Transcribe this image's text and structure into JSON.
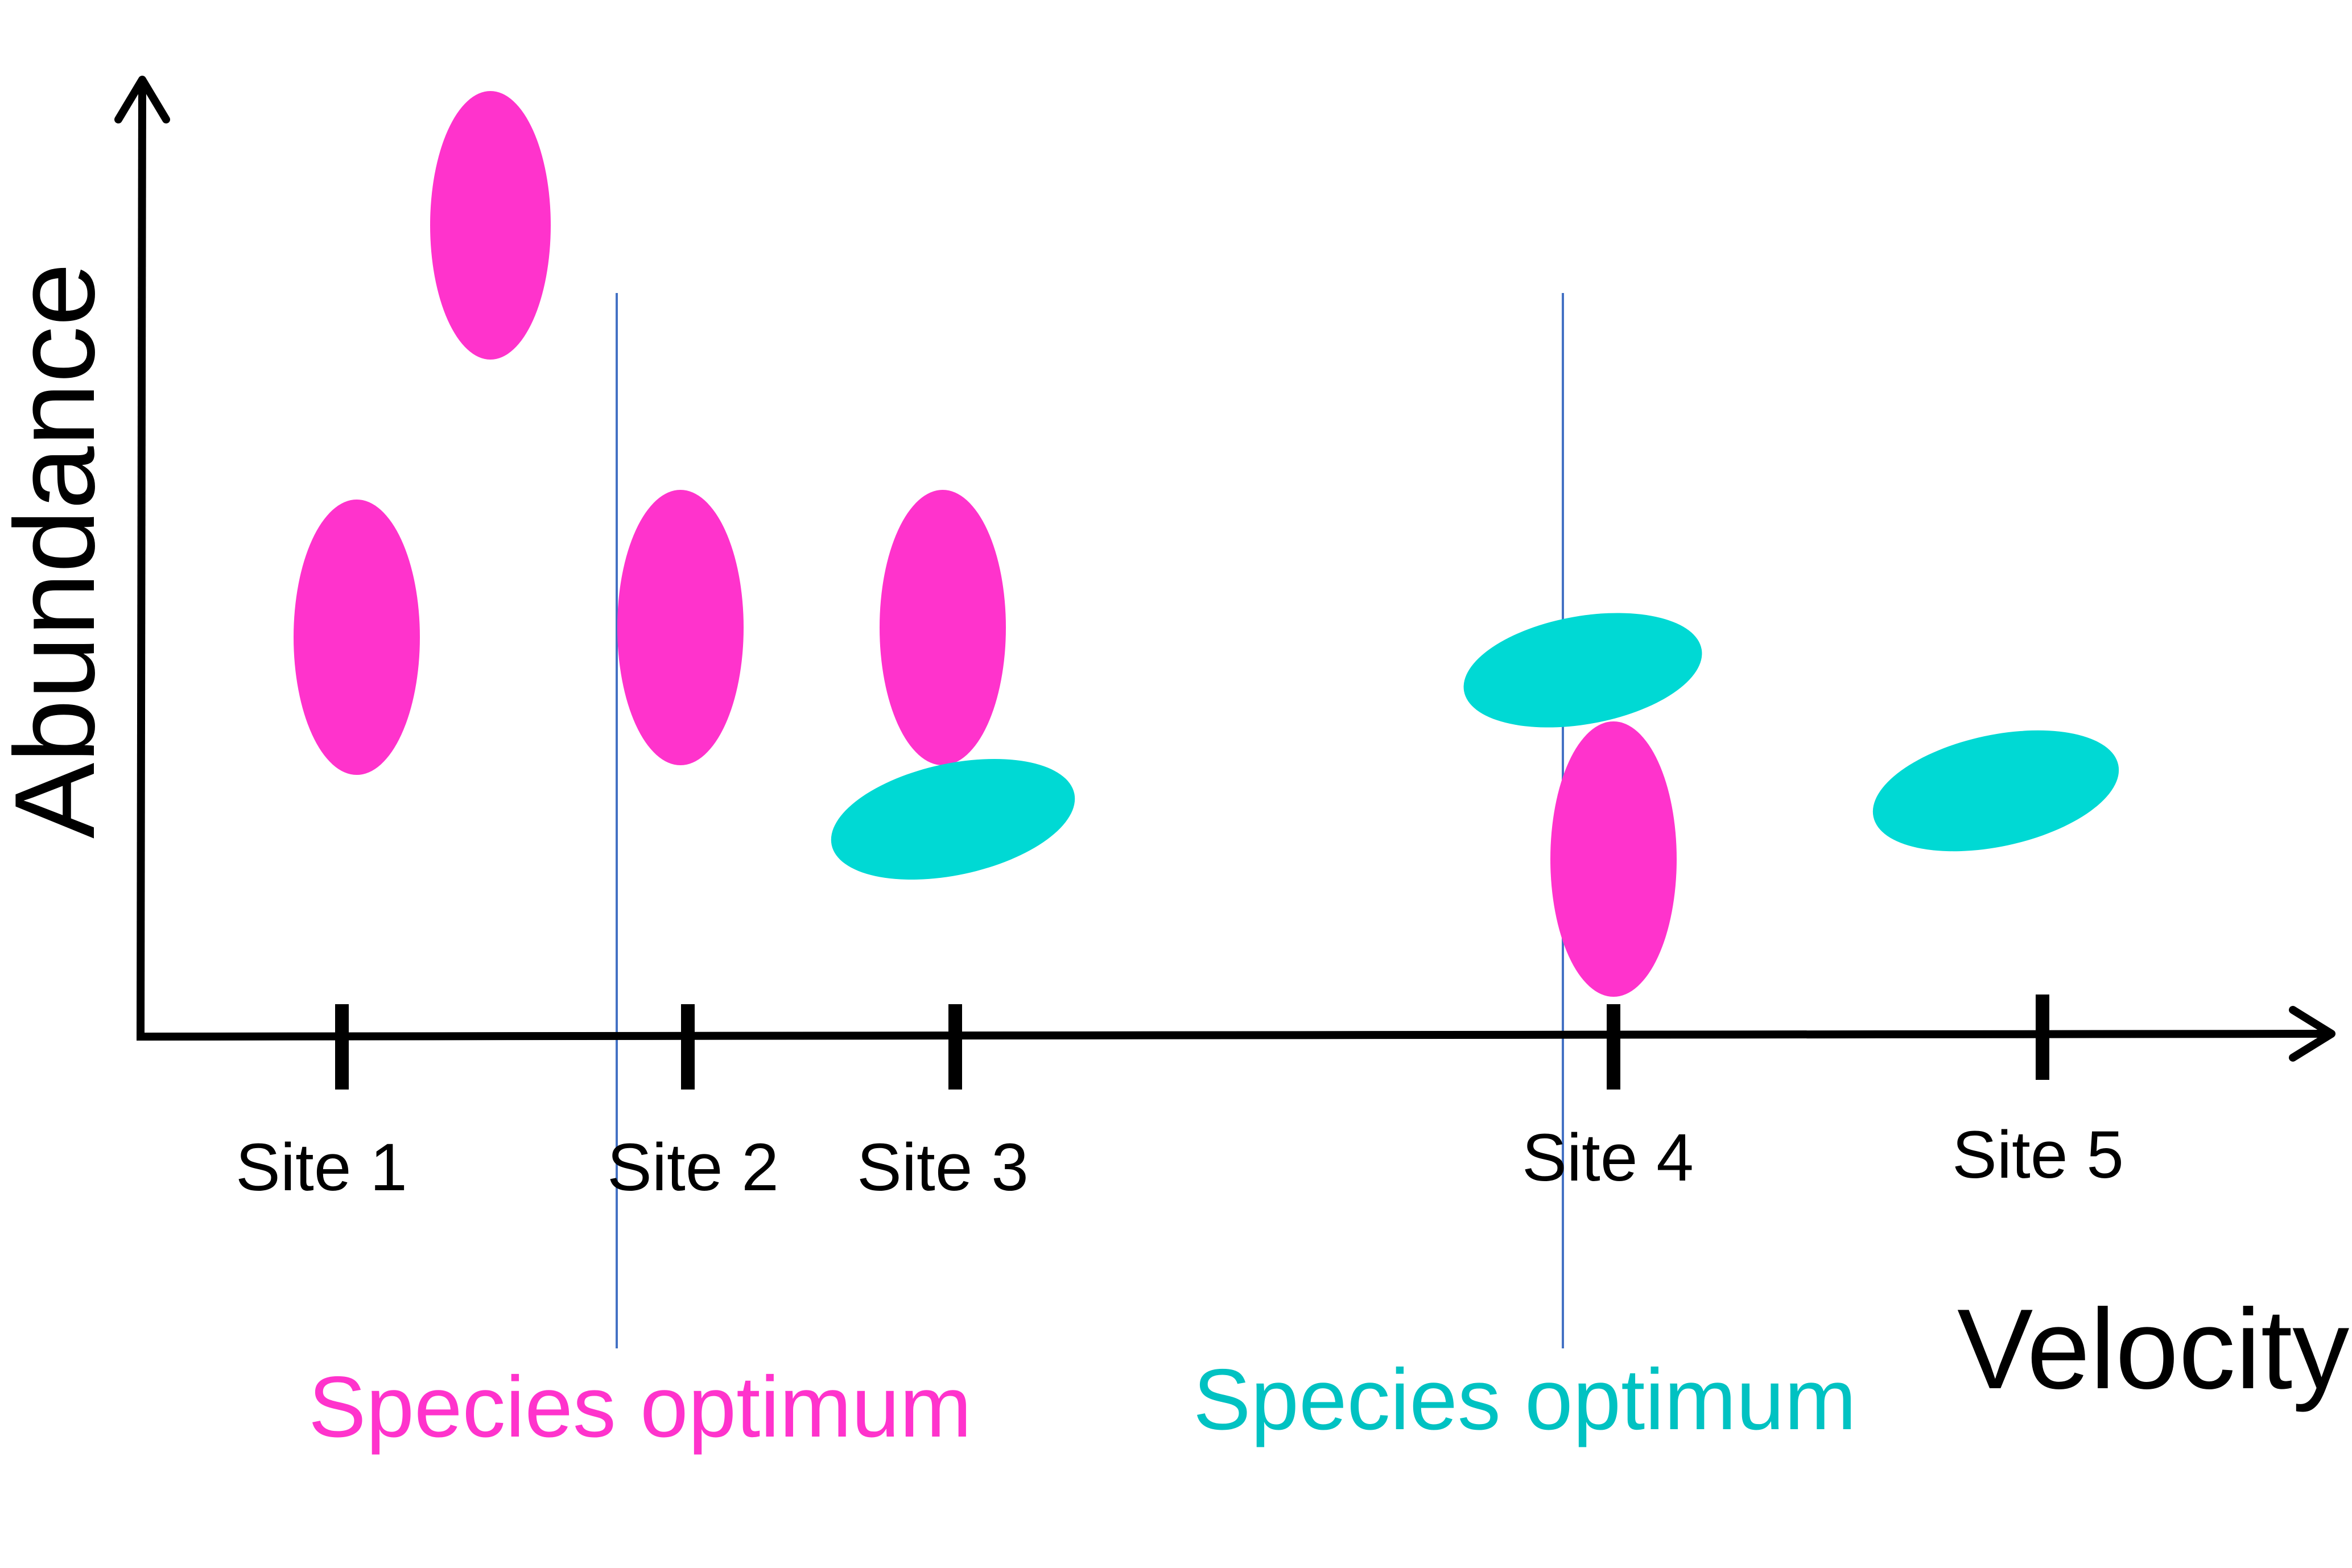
{
  "axes": {
    "y_label": "Abundance",
    "x_label": "Velocity"
  },
  "sites": [
    "Site 1",
    "Site 2",
    "Site 3",
    "Site 4",
    "Site 5"
  ],
  "optimum_labels": {
    "pink": "Species optimum",
    "teal": "Species optimum"
  },
  "colors": {
    "pink_species": "#ff33cc",
    "teal_species": "#00d9d4",
    "optimum_line": "#4472c4",
    "axis": "#000000"
  }
}
